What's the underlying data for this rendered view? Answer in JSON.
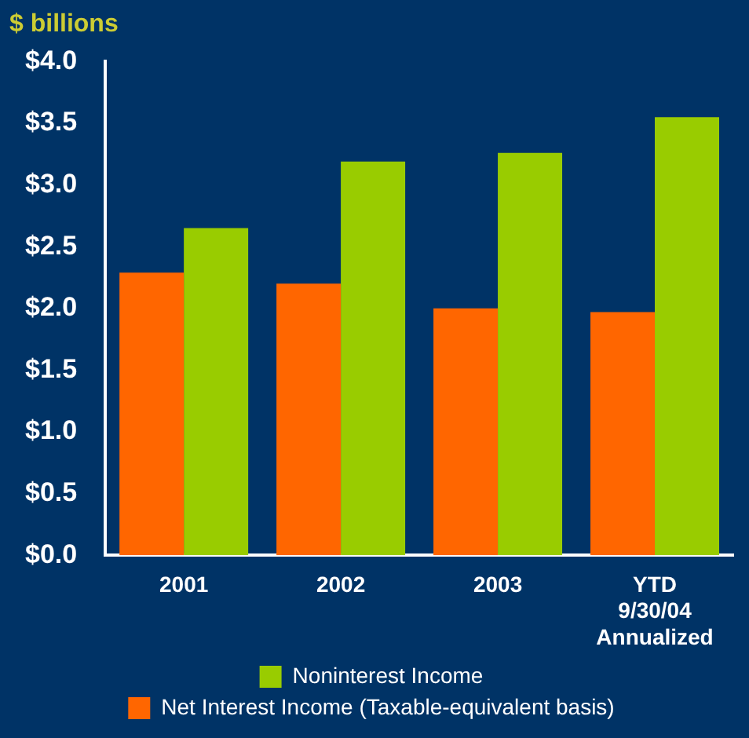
{
  "chart_data": {
    "type": "bar",
    "ylabel": "$ billions",
    "categories": [
      "2001",
      "2002",
      "2003",
      "YTD\n9/30/04\nAnnualized"
    ],
    "series": [
      {
        "name": "Net Interest Income (Taxable-equivalent basis)",
        "color": "#ff6600",
        "values": [
          2.29,
          2.2,
          2.0,
          1.97
        ]
      },
      {
        "name": "Noninterest Income",
        "color": "#99cc00",
        "values": [
          2.65,
          3.19,
          3.26,
          3.55
        ]
      }
    ],
    "ylim": [
      0,
      4
    ],
    "yticks": [
      {
        "value": 0,
        "label": "$0.0"
      },
      {
        "value": 0.5,
        "label": "$0.5"
      },
      {
        "value": 1,
        "label": "$1.0"
      },
      {
        "value": 1.5,
        "label": "$1.5"
      },
      {
        "value": 2,
        "label": "$2.0"
      },
      {
        "value": 2.5,
        "label": "$2.5"
      },
      {
        "value": 3,
        "label": "$3.0"
      },
      {
        "value": 3.5,
        "label": "$3.5"
      },
      {
        "value": 4,
        "label": "$4.0"
      }
    ],
    "grid": false,
    "legend": "bottom"
  }
}
